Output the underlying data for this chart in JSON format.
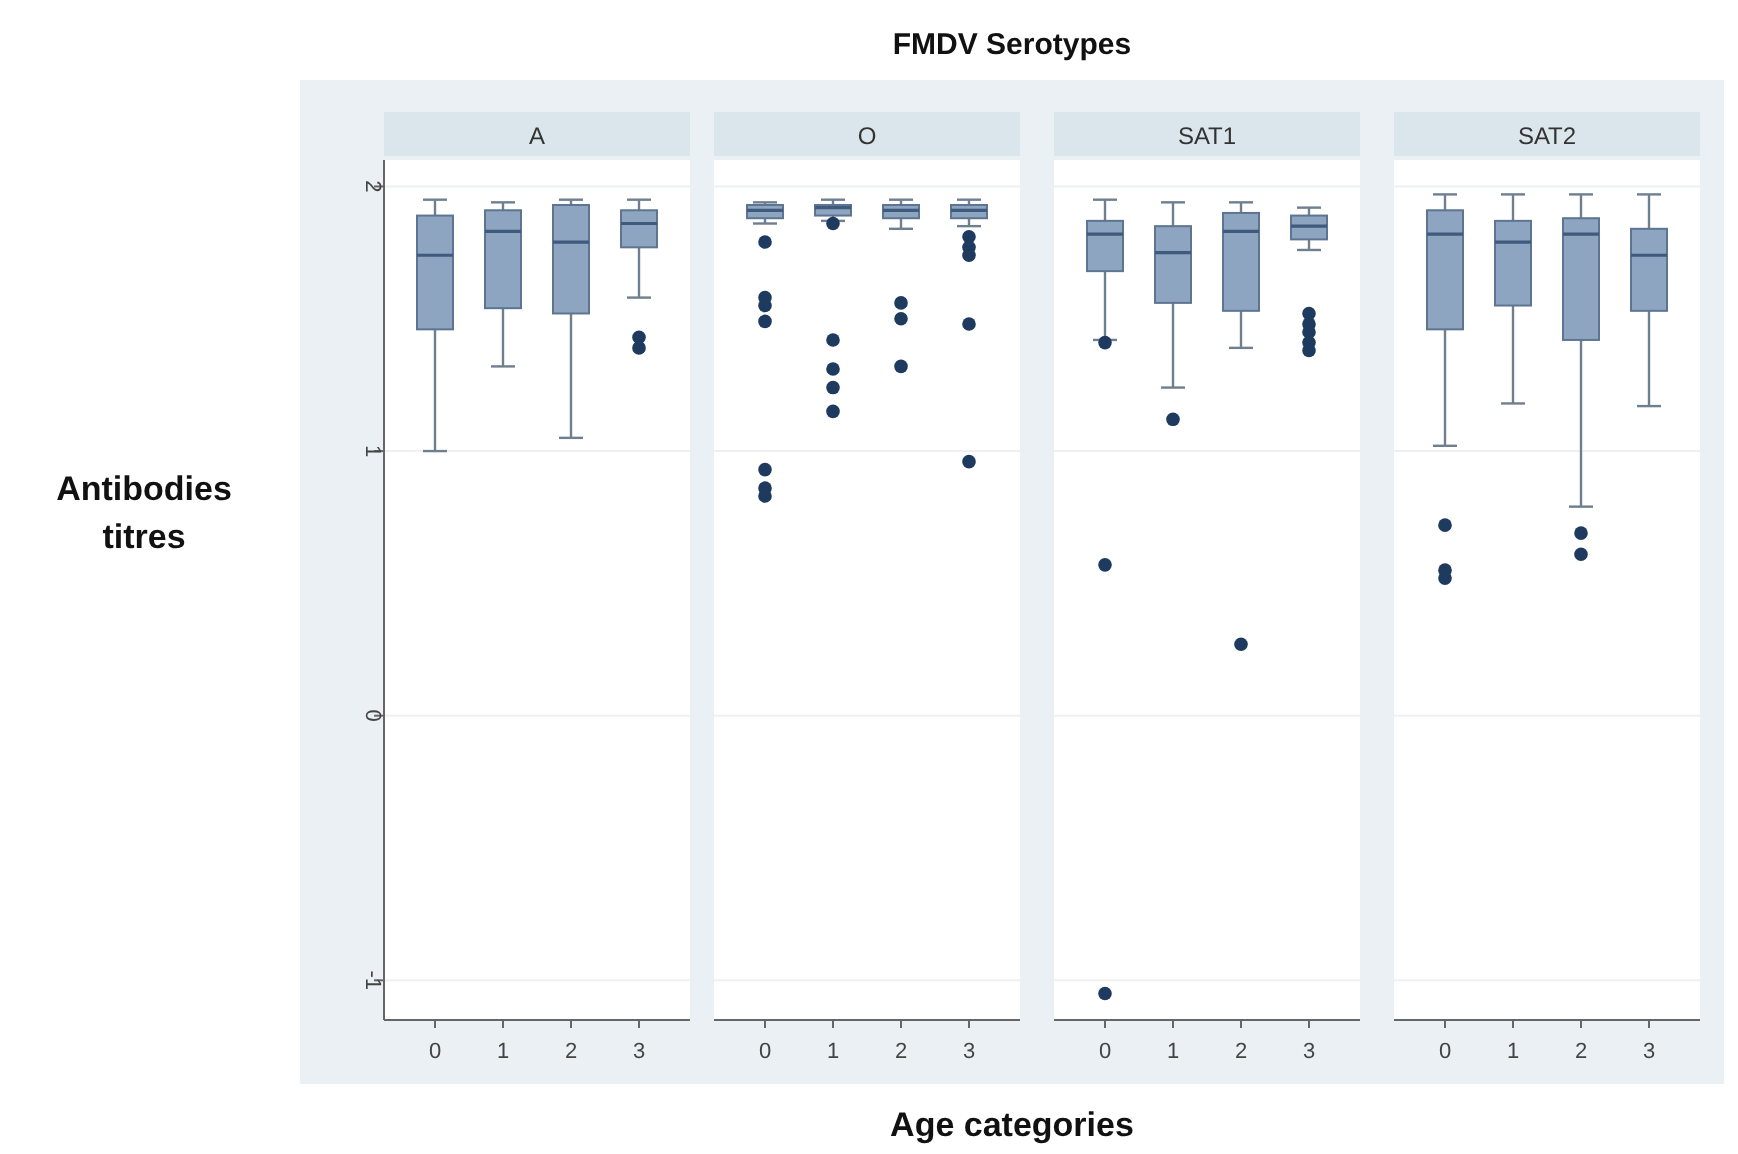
{
  "chart_data": [
    {
      "type": "box",
      "title": "A",
      "annotations": [
        "FMDV Serotypes"
      ],
      "xlabel": "Age categories",
      "ylabel": "Antibodies titres",
      "categories": [
        "0",
        "1",
        "2",
        "3"
      ],
      "ylim": [
        -1.15,
        2.1
      ],
      "yticks": [
        -1,
        0,
        1,
        2
      ],
      "grid": "y",
      "series": [
        {
          "color": "#8ea5c2",
          "boxes": [
            {
              "low": 1.0,
              "q1": 1.46,
              "median": 1.74,
              "q3": 1.89,
              "high": 1.95
            },
            {
              "low": 1.32,
              "q1": 1.54,
              "median": 1.83,
              "q3": 1.91,
              "high": 1.94
            },
            {
              "low": 1.05,
              "q1": 1.52,
              "median": 1.79,
              "q3": 1.93,
              "high": 1.95
            },
            {
              "low": 1.58,
              "q1": 1.77,
              "median": 1.86,
              "q3": 1.91,
              "high": 1.95,
              "outliers": [
                1.43,
                1.39
              ]
            }
          ]
        }
      ]
    },
    {
      "type": "box",
      "title": "O",
      "categories": [
        "0",
        "1",
        "2",
        "3"
      ],
      "ylim": [
        -1.15,
        2.1
      ],
      "yticks": [
        -1,
        0,
        1,
        2
      ],
      "grid": "y",
      "tick_labels": "x",
      "series": [
        {
          "color": "#8ea5c2",
          "boxes": [
            {
              "low": 1.86,
              "q1": 1.88,
              "median": 1.91,
              "q3": 1.93,
              "high": 1.94,
              "outliers": [
                1.79,
                1.58,
                1.55,
                1.49,
                0.93,
                0.86,
                0.83
              ]
            },
            {
              "low": 1.87,
              "q1": 1.89,
              "median": 1.92,
              "q3": 1.93,
              "high": 1.95,
              "outliers": [
                1.86,
                1.42,
                1.31,
                1.24,
                1.15
              ]
            },
            {
              "low": 1.84,
              "q1": 1.88,
              "median": 1.91,
              "q3": 1.93,
              "high": 1.95,
              "outliers": [
                1.56,
                1.5,
                1.32
              ]
            },
            {
              "low": 1.85,
              "q1": 1.88,
              "median": 1.91,
              "q3": 1.93,
              "high": 1.95,
              "outliers": [
                1.81,
                1.77,
                1.74,
                1.48,
                0.96
              ]
            }
          ]
        }
      ]
    },
    {
      "type": "box",
      "title": "SAT1",
      "categories": [
        "0",
        "1",
        "2",
        "3"
      ],
      "ylim": [
        -1.15,
        2.1
      ],
      "yticks": [
        -1,
        0,
        1,
        2
      ],
      "grid": "y",
      "tick_labels": "x",
      "series": [
        {
          "color": "#8ea5c2",
          "boxes": [
            {
              "low": 1.42,
              "q1": 1.68,
              "median": 1.82,
              "q3": 1.87,
              "high": 1.95,
              "outliers": [
                1.41,
                0.57,
                -1.05
              ]
            },
            {
              "low": 1.24,
              "q1": 1.56,
              "median": 1.75,
              "q3": 1.85,
              "high": 1.94,
              "outliers": [
                1.12
              ]
            },
            {
              "low": 1.39,
              "q1": 1.53,
              "median": 1.83,
              "q3": 1.9,
              "high": 1.94,
              "outliers": [
                0.27
              ]
            },
            {
              "low": 1.76,
              "q1": 1.8,
              "median": 1.85,
              "q3": 1.89,
              "high": 1.92,
              "outliers": [
                1.52,
                1.48,
                1.45,
                1.41,
                1.38
              ]
            }
          ]
        }
      ]
    },
    {
      "type": "box",
      "title": "SAT2",
      "categories": [
        "0",
        "1",
        "2",
        "3"
      ],
      "ylim": [
        -1.15,
        2.1
      ],
      "yticks": [
        -1,
        0,
        1,
        2
      ],
      "grid": "y",
      "tick_labels": "x",
      "series": [
        {
          "color": "#8ea5c2",
          "boxes": [
            {
              "low": 1.02,
              "q1": 1.46,
              "median": 1.82,
              "q3": 1.91,
              "high": 1.97,
              "outliers": [
                0.72,
                0.55,
                0.52
              ]
            },
            {
              "low": 1.18,
              "q1": 1.55,
              "median": 1.79,
              "q3": 1.87,
              "high": 1.97
            },
            {
              "low": 0.79,
              "q1": 1.42,
              "median": 1.82,
              "q3": 1.88,
              "high": 1.97,
              "outliers": [
                0.69,
                0.61
              ]
            },
            {
              "low": 1.17,
              "q1": 1.53,
              "median": 1.74,
              "q3": 1.84,
              "high": 1.97
            }
          ]
        }
      ]
    }
  ]
}
